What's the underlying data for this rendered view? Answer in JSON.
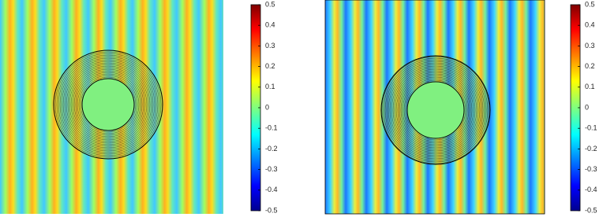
{
  "chart_data": [
    {
      "type": "field",
      "colormap": "jet",
      "clim": [
        -0.5,
        0.5
      ],
      "cticks": [
        -0.5,
        -0.4,
        -0.3,
        -0.2,
        -0.1,
        0,
        0.1,
        0.2,
        0.3,
        0.4,
        0.5
      ]
    },
    {
      "type": "field",
      "colormap": "jet",
      "clim": [
        -0.5,
        0.5
      ],
      "cticks": [
        -0.5,
        -0.4,
        -0.3,
        -0.2,
        -0.1,
        0,
        0.1,
        0.2,
        0.3,
        0.4,
        0.5
      ]
    }
  ]
}
